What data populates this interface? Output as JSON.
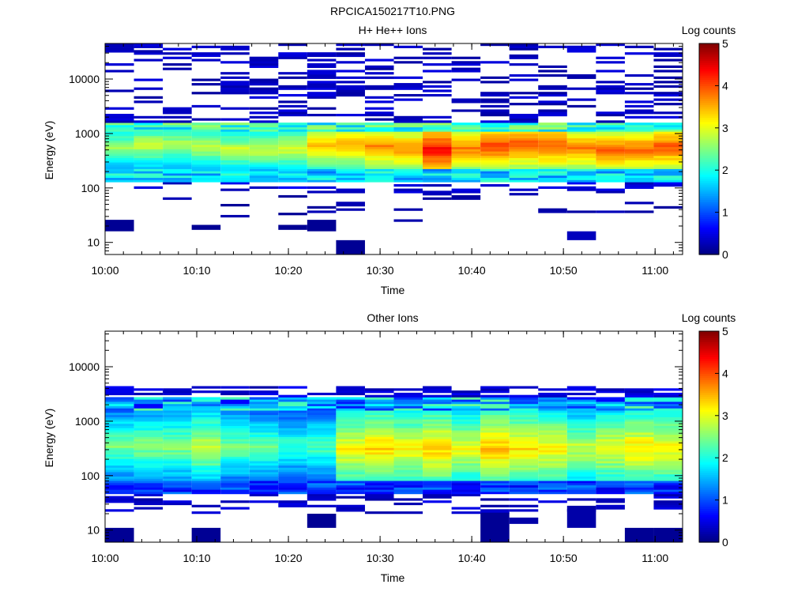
{
  "figure_title": "RPCICA150217T10.PNG",
  "chart_data": [
    {
      "type": "heatmap",
      "title": "H+ He++ Ions",
      "xlabel": "Time",
      "ylabel": "Energy (eV)",
      "x_scale": "time",
      "x_range": [
        "10:00",
        "11:03"
      ],
      "x_ticks": [
        "10:00",
        "10:10",
        "10:20",
        "10:30",
        "10:40",
        "10:50",
        "11:00"
      ],
      "y_scale": "log",
      "y_range": [
        6,
        45000
      ],
      "y_ticks": [
        10,
        100,
        1000,
        10000
      ],
      "y_tick_labels": [
        "10",
        "100",
        "1000",
        "10000"
      ],
      "colorbar": {
        "label": "Log counts",
        "range": [
          0,
          5
        ],
        "ticks": [
          "0",
          "1",
          "2",
          "3",
          "4",
          "5"
        ],
        "colormap": "jet"
      },
      "time_bins_start": [
        "10:00",
        "10:03",
        "10:06",
        "10:10",
        "10:13",
        "10:16",
        "10:19",
        "10:22",
        "10:26",
        "10:29",
        "10:32",
        "10:35",
        "10:38",
        "10:42",
        "10:45",
        "10:48",
        "10:51",
        "10:54",
        "10:58",
        "11:01"
      ],
      "columns": [
        {
          "core": 2.6,
          "peak": 2.7,
          "bg": 1
        },
        {
          "core": 2.6,
          "peak": 2.9,
          "bg": 1
        },
        {
          "core": 2.6,
          "peak": 2.8,
          "bg": 1
        },
        {
          "core": 2.6,
          "peak": 2.9,
          "bg": 1
        },
        {
          "core": 2.6,
          "peak": 2.9,
          "bg": 1
        },
        {
          "core": 2.6,
          "peak": 2.9,
          "bg": 1
        },
        {
          "core": 2.6,
          "peak": 3.0,
          "bg": 1
        },
        {
          "core": 2.6,
          "peak": 3.5,
          "bg": 1
        },
        {
          "core": 2.6,
          "peak": 3.6,
          "bg": 1
        },
        {
          "core": 2.6,
          "peak": 3.7,
          "bg": 1
        },
        {
          "core": 2.6,
          "peak": 3.7,
          "bg": 1
        },
        {
          "core": 2.6,
          "peak": 4.4,
          "bg": 1
        },
        {
          "core": 2.6,
          "peak": 3.8,
          "bg": 1
        },
        {
          "core": 2.6,
          "peak": 4.1,
          "bg": 1
        },
        {
          "core": 2.6,
          "peak": 4.0,
          "bg": 1
        },
        {
          "core": 2.6,
          "peak": 4.0,
          "bg": 1
        },
        {
          "core": 2.6,
          "peak": 3.8,
          "bg": 1
        },
        {
          "core": 2.6,
          "peak": 3.9,
          "bg": 1
        },
        {
          "core": 2.6,
          "peak": 3.9,
          "bg": 1
        },
        {
          "core": 2.6,
          "peak": 4.0,
          "bg": 1
        }
      ],
      "low_energy_patches": [
        {
          "bin": 0,
          "e_low": 16,
          "e_high": 26,
          "value": 0.1
        },
        {
          "bin": 3,
          "e_low": 17,
          "e_high": 21,
          "value": 0.1
        },
        {
          "bin": 6,
          "e_low": 17,
          "e_high": 21,
          "value": 0.1
        },
        {
          "bin": 7,
          "e_low": 16,
          "e_high": 26,
          "value": 0.1
        },
        {
          "bin": 8,
          "e_low": 6,
          "e_high": 11,
          "value": 0.1
        },
        {
          "bin": 16,
          "e_low": 11,
          "e_high": 16,
          "value": 0.3
        }
      ]
    },
    {
      "type": "heatmap",
      "title": "Other Ions",
      "xlabel": "Time",
      "ylabel": "Energy (eV)",
      "x_scale": "time",
      "x_range": [
        "10:00",
        "11:03"
      ],
      "x_ticks": [
        "10:00",
        "10:10",
        "10:20",
        "10:30",
        "10:40",
        "10:50",
        "11:00"
      ],
      "y_scale": "log",
      "y_range": [
        6,
        45000
      ],
      "y_ticks": [
        10,
        100,
        1000,
        10000
      ],
      "y_tick_labels": [
        "10",
        "100",
        "1000",
        "10000"
      ],
      "colorbar": {
        "label": "Log counts",
        "range": [
          0,
          5
        ],
        "ticks": [
          "0",
          "1",
          "2",
          "3",
          "4",
          "5"
        ],
        "colormap": "jet"
      },
      "time_bins_start": [
        "10:00",
        "10:03",
        "10:06",
        "10:10",
        "10:13",
        "10:16",
        "10:19",
        "10:22",
        "10:26",
        "10:29",
        "10:32",
        "10:35",
        "10:38",
        "10:42",
        "10:45",
        "10:48",
        "10:51",
        "10:54",
        "10:58",
        "11:01"
      ],
      "columns": [
        {
          "core": 2.2,
          "peak": 2.5
        },
        {
          "core": 2.2,
          "peak": 2.6
        },
        {
          "core": 2.2,
          "peak": 2.6
        },
        {
          "core": 2.2,
          "peak": 2.9
        },
        {
          "core": 2.2,
          "peak": 2.5
        },
        {
          "core": 2.2,
          "peak": 2.4
        },
        {
          "core": 2.0,
          "peak": 2.2
        },
        {
          "core": 2.0,
          "peak": 2.3
        },
        {
          "core": 2.3,
          "peak": 3.2
        },
        {
          "core": 2.3,
          "peak": 3.4
        },
        {
          "core": 2.3,
          "peak": 3.2
        },
        {
          "core": 2.3,
          "peak": 3.4
        },
        {
          "core": 2.3,
          "peak": 3.1
        },
        {
          "core": 2.3,
          "peak": 3.5
        },
        {
          "core": 2.3,
          "peak": 3.3
        },
        {
          "core": 2.3,
          "peak": 3.2
        },
        {
          "core": 2.2,
          "peak": 2.9
        },
        {
          "core": 2.2,
          "peak": 3.1
        },
        {
          "core": 2.2,
          "peak": 3.3
        },
        {
          "core": 2.2,
          "peak": 3.2
        }
      ],
      "low_energy_patches": [
        {
          "bin": 0,
          "e_low": 6,
          "e_high": 11,
          "value": 0.1
        },
        {
          "bin": 3,
          "e_low": 6,
          "e_high": 11,
          "value": 0.1
        },
        {
          "bin": 7,
          "e_low": 11,
          "e_high": 20,
          "value": 0.1
        },
        {
          "bin": 13,
          "e_low": 6,
          "e_high": 21,
          "value": 0.1
        },
        {
          "bin": 14,
          "e_low": 13,
          "e_high": 17,
          "value": 0.2
        },
        {
          "bin": 16,
          "e_low": 11,
          "e_high": 28,
          "value": 0.2
        },
        {
          "bin": 18,
          "e_low": 6,
          "e_high": 11,
          "value": 0.1
        },
        {
          "bin": 19,
          "e_low": 6,
          "e_high": 11,
          "value": 0.1
        }
      ]
    }
  ]
}
